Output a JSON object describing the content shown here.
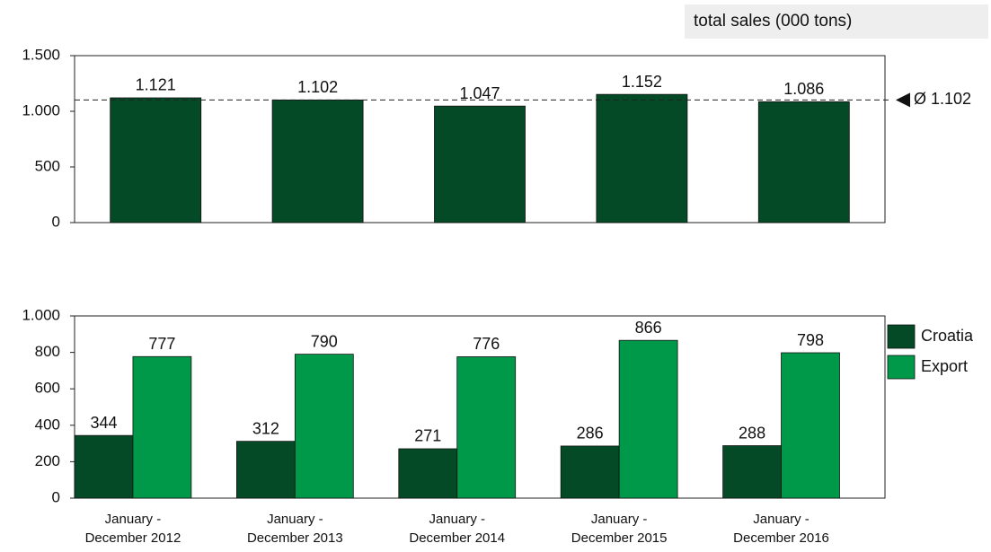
{
  "chart_data": [
    {
      "type": "bar",
      "title": "total sales (000 tons)",
      "categories": [
        "January - December 2012",
        "January - December 2013",
        "January - December 2014",
        "January - December 2015",
        "January - December 2016"
      ],
      "values": [
        1121,
        1102,
        1047,
        1152,
        1086
      ],
      "value_labels": [
        "1.121",
        "1.102",
        "1.047",
        "1.152",
        "1.086"
      ],
      "color": "#054a26",
      "average": {
        "value": 1102,
        "label": "Ø 1.102"
      },
      "ylim": [
        0,
        1500
      ],
      "yticks": [
        0,
        500,
        {
          "value": 1000,
          "label": "1.000"
        },
        {
          "value": 1500,
          "label": "1.500"
        }
      ]
    },
    {
      "type": "grouped-bar",
      "categories": [
        "January - December 2012",
        "January - December 2013",
        "January - December 2014",
        "January - December 2015",
        "January - December 2016"
      ],
      "series": [
        {
          "name": "Croatia",
          "color": "#054a26",
          "values": [
            344,
            312,
            271,
            286,
            288
          ]
        },
        {
          "name": "Export",
          "color": "#00994a",
          "values": [
            777,
            790,
            776,
            866,
            798
          ]
        }
      ],
      "ylim": [
        0,
        1000
      ],
      "yticks": [
        0,
        200,
        400,
        600,
        800,
        {
          "value": 1000,
          "label": "1.000"
        }
      ],
      "legend": "right"
    }
  ]
}
